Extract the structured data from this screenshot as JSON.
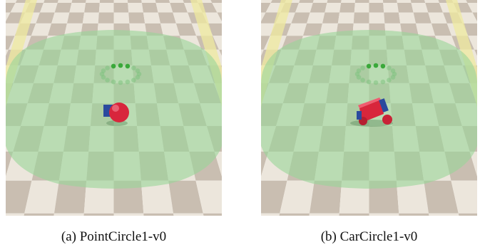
{
  "figures": [
    {
      "id": "a",
      "caption": "(a) PointCircle1-v0",
      "robot": "point-robot"
    },
    {
      "id": "b",
      "caption": "(b) CarCircle1-v0",
      "robot": "car-robot"
    }
  ],
  "colors": {
    "floor_light": "#ece6dc",
    "floor_dark": "#c9beb1",
    "circle_zone": "#9bd59a",
    "boundary_wall": "#efe9a0",
    "robot_body": "#d8263c",
    "robot_sensor": "#2a4a9e",
    "waypoint_marker": "#3aa83a"
  }
}
